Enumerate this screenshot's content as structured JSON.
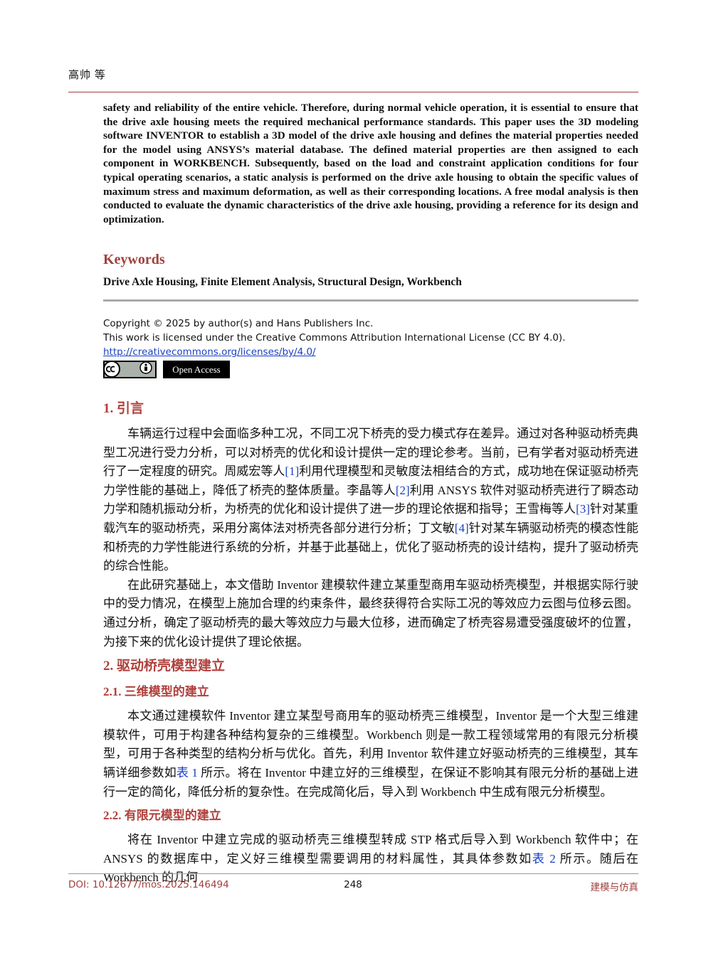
{
  "header": {
    "authors": "高帅 等"
  },
  "abstract": {
    "text": "safety and reliability of the entire vehicle. Therefore, during normal vehicle operation, it is essential to ensure that the drive axle housing meets the required mechanical performance standards. This paper uses the 3D modeling software INVENTOR to establish a 3D model of the drive axle housing and defines the material properties needed for the model using ANSYS’s material database. The defined material properties are then assigned to each component in WORKBENCH. Subsequently, based on the load and constraint application conditions for four typical operating scenarios, a static analysis is performed on the drive axle housing to obtain the specific values of maximum stress and maximum deformation, as well as their corresponding locations. A free modal analysis is then conducted to evaluate the dynamic characteristics of the drive axle housing, providing a reference for its design and optimization."
  },
  "keywords": {
    "heading": "Keywords",
    "text": "Drive Axle Housing, Finite Element Analysis, Structural Design, Workbench"
  },
  "copyright": {
    "lines": [
      "Copyright © 2025 by author(s) and Hans Publishers Inc.",
      "This work is licensed under the Creative Commons Attribution International License (CC BY 4.0)."
    ],
    "url": "http://creativecommons.org/licenses/by/4.0/",
    "badge": "Open Access"
  },
  "sections": [
    {
      "heading": "1. 引言",
      "paragraphs": [
        [
          "车辆运行过程中会面临多种工况，不同工况下桥壳的受力模式存在差异。通过对各种驱动桥壳典型工况进行受力分析，可以对桥壳的优化和设计提供一定的理论参考。当前，已有学者对驱动桥壳进行了一定程度的研究。周威宏等人",
          "[1]",
          "利用代理模型和灵敏度法相结合的方式，成功地在保证驱动桥壳力学性能的基础上，降低了桥壳的整体质量。李晶等人",
          "[2]",
          "利用 ANSYS 软件对驱动桥壳进行了瞬态动力学和随机振动分析，为桥壳的优化和设计提供了进一步的理论依据和指导；王雪梅等人",
          "[3]",
          "针对某重载汽车的驱动桥壳，采用分离体法对桥壳各部分进行分析；丁文敏",
          "[4]",
          "针对某车辆驱动桥壳的模态性能和桥壳的力学性能进行系统的分析，并基于此基础上，优化了驱动桥壳的设计结构，提升了驱动桥壳的综合性能。"
        ],
        [
          "在此研究基础上，本文借助 Inventor 建模软件建立某重型商用车驱动桥壳模型，并根据实际行驶中的受力情况，在模型上施加合理的约束条件，最终获得符合实际工况的等效应力云图与位移云图。通过分析，确定了驱动桥壳的最大等效应力与最大位移，进而确定了桥壳容易遭受强度破坏的位置，为接下来的优化设计提供了理论依据。"
        ]
      ]
    },
    {
      "heading": "2. 驱动桥壳模型建立",
      "subsections": [
        {
          "heading": "2.1. 三维模型的建立",
          "paragraphs": [
            [
              "本文通过建模软件 Inventor 建立某型号商用车的驱动桥壳三维模型，Inventor 是一个大型三维建模软件，可用于构建各种结构复杂的三维模型。Workbench 则是一款工程领域常用的有限元分析模型，可用于各种类型的结构分析与优化。首先，利用 Inventor 软件建立好驱动桥壳的三维模型，其车辆详细参数如",
              "表 1",
              " 所示。将在 Inventor 中建立好的三维模型，在保证不影响其有限元分析的基础上进行一定的简化，降低分析的复杂性。在完成简化后，导入到 Workbench 中生成有限元分析模型。"
            ]
          ]
        },
        {
          "heading": "2.2. 有限元模型的建立",
          "paragraphs": [
            [
              "将在 Inventor 中建立完成的驱动桥壳三维模型转成 STP 格式后导入到 Workbench 软件中；在 ANSYS 的数据库中，定义好三维模型需要调用的材料属性，其具体参数如",
              "表 2",
              " 所示。随后在 Workbench 的几何"
            ]
          ]
        }
      ]
    }
  ],
  "footer": {
    "doi": "DOI: 10.12677/mos.2025.146494",
    "page": "248",
    "journal": "建模与仿真"
  }
}
